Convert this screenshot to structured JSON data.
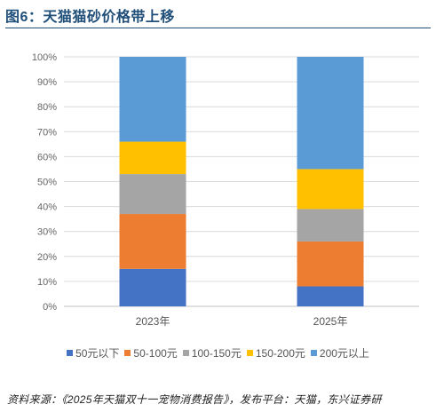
{
  "title": "图6：天猫猫砂价格带上移",
  "source": "资料来源：《2025年天猫双十一宠物消费报告》，发布平台：天猫，东兴证券研",
  "colors": {
    "title": "#1f4e79",
    "grid": "#d9d9d9",
    "axis": "#bfbfbf"
  },
  "chart_data": {
    "type": "bar",
    "stacked": true,
    "percent": true,
    "categories": [
      "2023年",
      "2025年"
    ],
    "y_ticks": [
      "0%",
      "10%",
      "20%",
      "30%",
      "40%",
      "50%",
      "60%",
      "70%",
      "80%",
      "90%",
      "100%"
    ],
    "ylim": [
      0,
      100
    ],
    "grid": true,
    "legend_position": "bottom",
    "series": [
      {
        "name": "50元以下",
        "color": "#4472c4",
        "values": [
          15,
          8
        ]
      },
      {
        "name": "50-100元",
        "color": "#ed7d31",
        "values": [
          22,
          18
        ]
      },
      {
        "name": "100-150元",
        "color": "#a5a5a5",
        "values": [
          16,
          13
        ]
      },
      {
        "name": "150-200元",
        "color": "#ffc000",
        "values": [
          13,
          16
        ]
      },
      {
        "name": "200元以上",
        "color": "#5b9bd5",
        "values": [
          34,
          45
        ]
      }
    ]
  }
}
